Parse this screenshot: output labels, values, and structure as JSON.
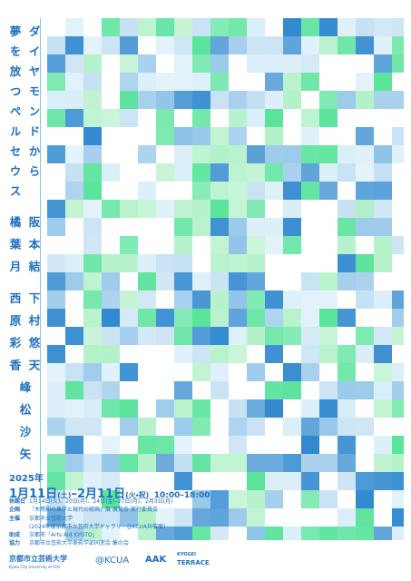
{
  "title": {
    "line1": "ダイヤモンドから",
    "line2": "夢を放つペルセウス"
  },
  "artists": [
    {
      "name": "阪本結"
    },
    {
      "name": "橘葉月"
    },
    {
      "name": "下村悠天"
    },
    {
      "name": "西原彩香"
    },
    {
      "name": "峰松沙矢"
    }
  ],
  "dates": {
    "year": "2025年",
    "start": "1月11日",
    "start_day": "(土)",
    "sep": "–",
    "end": "2月11日",
    "end_day": "(火・祝)",
    "hours": "10:00–18:00"
  },
  "info": [
    {
      "label": "休館日",
      "text": "1月14日(火)、20日(月)、24日(金)–27日(月)、2月3日(月)"
    },
    {
      "label": "企画",
      "text": "「木燃和の果学と現代の絵画」展 展覧会 実行委員会"
    },
    {
      "label": "主催",
      "text": "京都市立芸術大学"
    },
    {
      "label": "",
      "text": "(2024年度京都市立芸術大学ギャラリー@KCUA共催展)"
    },
    {
      "label": "助成",
      "text": "京都市「Arts Aid KYOTO」"
    },
    {
      "label": "協力",
      "text": "京都市立芸術大学美術学部同窓会 集の会"
    }
  ],
  "logos": {
    "university": "京都市立芸術大学",
    "university_en": "Kyoto City University of Arts",
    "kcua": "@KCUA",
    "aak": "AAK",
    "terrace_top": "KYOGEI",
    "terrace": "TERRACE"
  }
}
